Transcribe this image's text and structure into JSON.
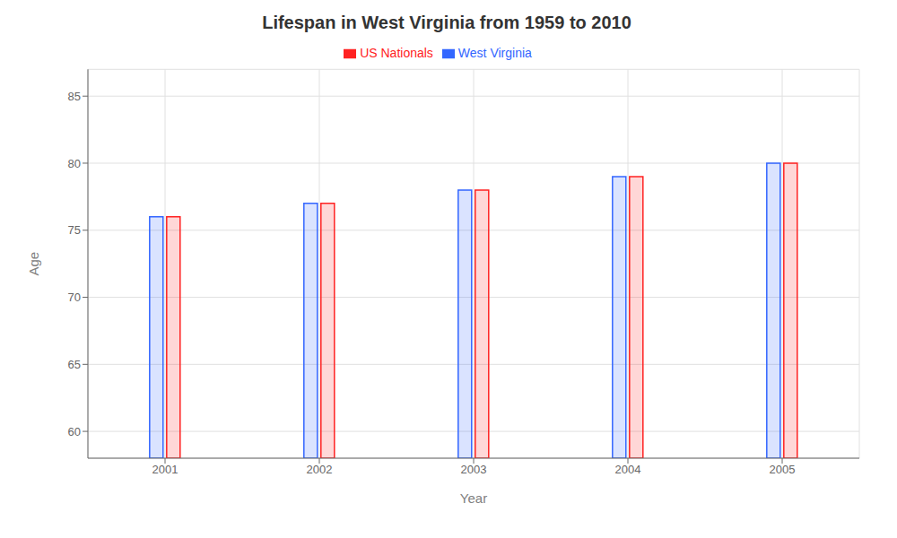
{
  "chart_data": {
    "type": "bar",
    "title": "Lifespan in West Virginia from 1959 to 2010",
    "x_label": "Year",
    "y_label": "Age",
    "categories": [
      "2001",
      "2002",
      "2003",
      "2004",
      "2005"
    ],
    "series": [
      {
        "name": "West Virginia",
        "color": "#3366ff",
        "values": [
          76,
          77,
          78,
          79,
          80
        ]
      },
      {
        "name": "US Nationals",
        "color": "#ff2222",
        "values": [
          76,
          77,
          78,
          79,
          80
        ]
      }
    ],
    "ylim": [
      58,
      87
    ],
    "yticks": [
      60,
      65,
      70,
      75,
      80,
      85
    ],
    "grid": true,
    "legend": "top"
  }
}
